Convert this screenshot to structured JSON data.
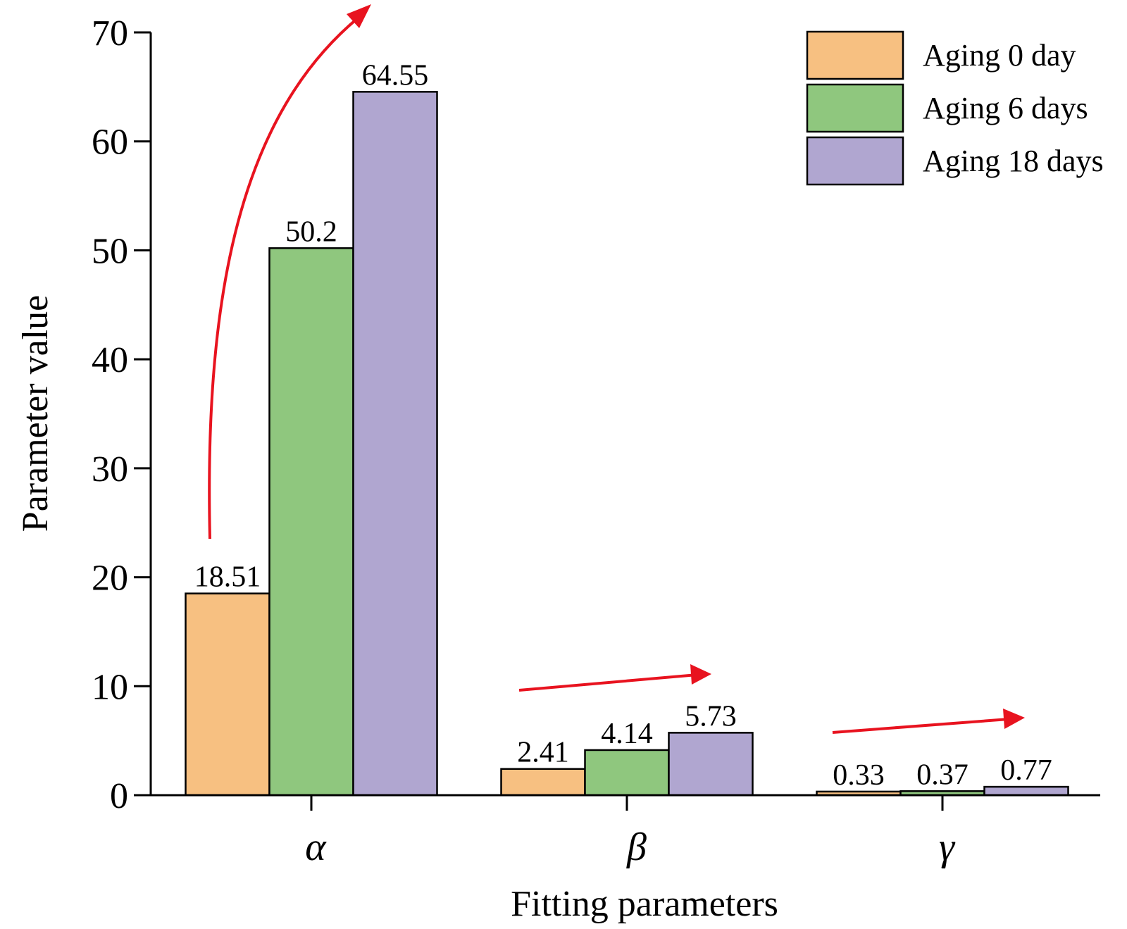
{
  "chart_data": {
    "type": "bar",
    "categories": [
      "α",
      "β",
      "γ"
    ],
    "series": [
      {
        "name": "Aging 0 day",
        "values": [
          18.51,
          2.41,
          0.33
        ],
        "labels": [
          "18.51",
          "2.41",
          "0.33"
        ],
        "color": "#f7c081"
      },
      {
        "name": "Aging 6 days",
        "values": [
          50.2,
          4.14,
          0.37
        ],
        "labels": [
          "50.2",
          "4.14",
          "0.37"
        ],
        "color": "#8fc77e"
      },
      {
        "name": "Aging 18 days",
        "values": [
          64.55,
          5.73,
          0.77
        ],
        "labels": [
          "64.55",
          "5.73",
          "0.77"
        ],
        "color": "#b0a6d0"
      }
    ],
    "xlabel": "Fitting parameters",
    "ylabel": "Parameter value",
    "ylim": [
      0,
      70
    ],
    "yticks": [
      0,
      10,
      20,
      30,
      40,
      50,
      60,
      70
    ],
    "grid": false,
    "legend_position": "top-right",
    "annotation_color": "#e8131f"
  }
}
